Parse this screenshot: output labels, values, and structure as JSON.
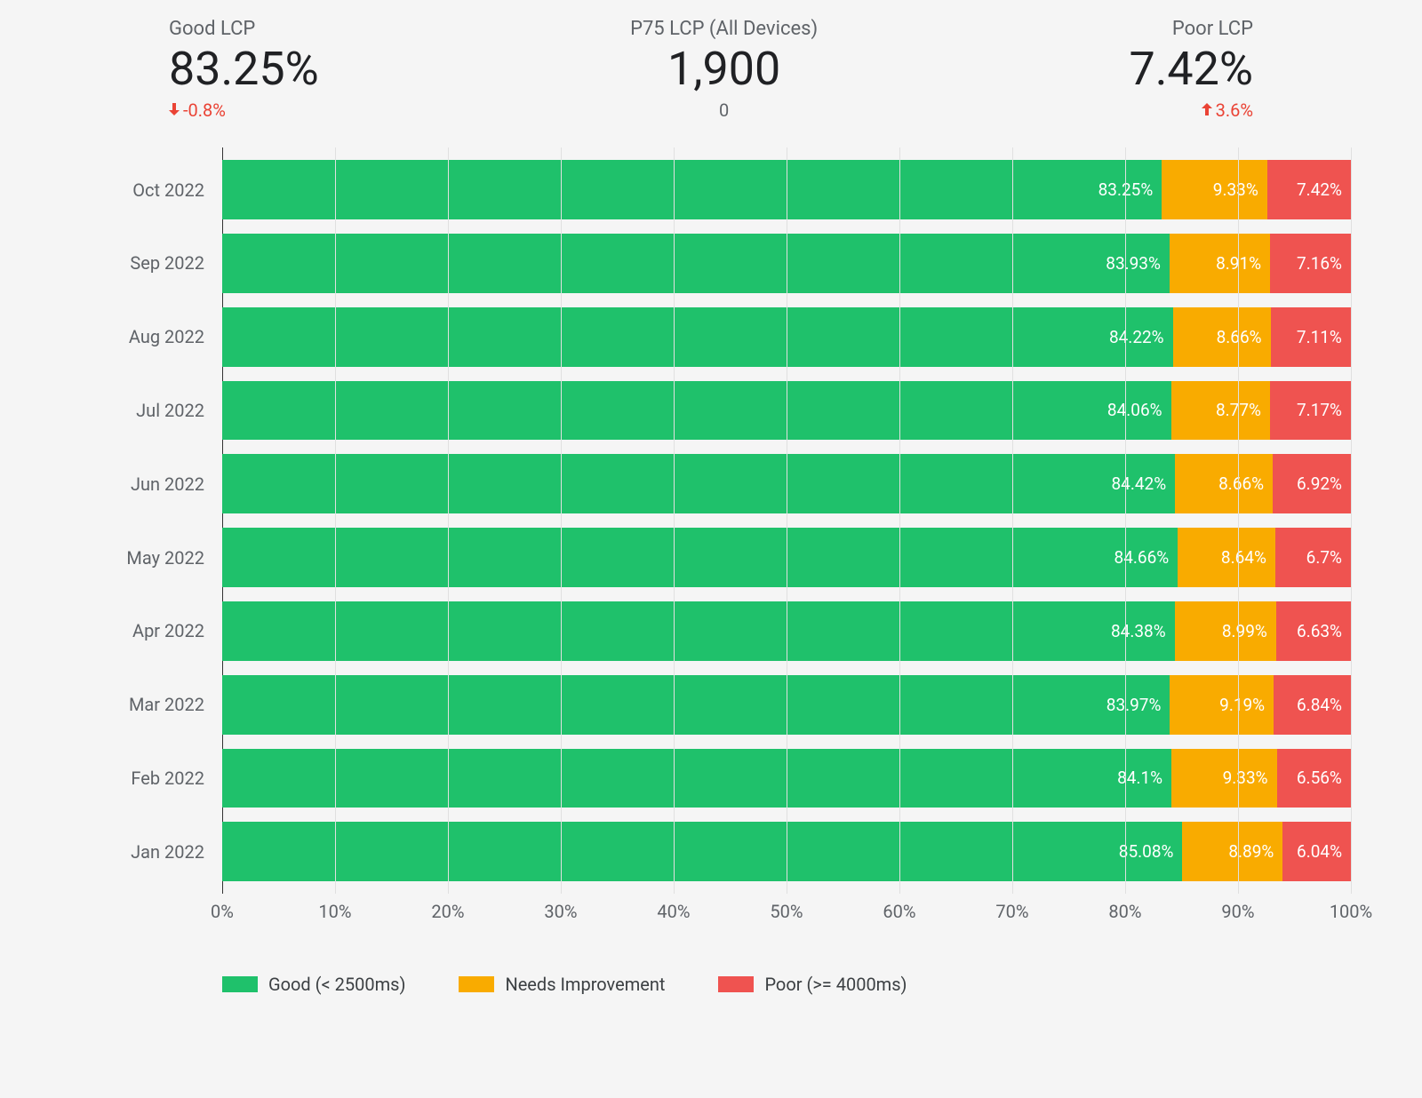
{
  "colors": {
    "good": "#1fc16b",
    "needs": "#f9ab00",
    "poor": "#ef5350",
    "grid": "#e0e0e0",
    "bg": "#f5f5f5",
    "text_muted": "#5f6368",
    "text_main": "#202124",
    "delta_red": "#ea4335"
  },
  "scorecards": {
    "good": {
      "label": "Good LCP",
      "value": "83.25%",
      "delta_arrow": "down",
      "delta_text": "-0.8%"
    },
    "p75": {
      "label": "P75 LCP (All Devices)",
      "value": "1,900",
      "sub": "0"
    },
    "poor": {
      "label": "Poor LCP",
      "value": "7.42%",
      "delta_arrow": "up",
      "delta_text": "3.6%"
    }
  },
  "chart": {
    "type": "stacked-horizontal-bar",
    "x_ticks": [
      "0%",
      "10%",
      "20%",
      "30%",
      "40%",
      "50%",
      "60%",
      "70%",
      "80%",
      "90%",
      "100%"
    ],
    "xlim": [
      0,
      100
    ],
    "series_keys": [
      "good",
      "needs",
      "poor"
    ],
    "rows": [
      {
        "label": "Oct 2022",
        "good": 83.25,
        "needs": 9.33,
        "poor": 7.42
      },
      {
        "label": "Sep 2022",
        "good": 83.93,
        "needs": 8.91,
        "poor": 7.16
      },
      {
        "label": "Aug 2022",
        "good": 84.22,
        "needs": 8.66,
        "poor": 7.11
      },
      {
        "label": "Jul 2022",
        "good": 84.06,
        "needs": 8.77,
        "poor": 7.17
      },
      {
        "label": "Jun 2022",
        "good": 84.42,
        "needs": 8.66,
        "poor": 6.92
      },
      {
        "label": "May 2022",
        "good": 84.66,
        "needs": 8.64,
        "poor": 6.7
      },
      {
        "label": "Apr 2022",
        "good": 84.38,
        "needs": 8.99,
        "poor": 6.63
      },
      {
        "label": "Mar 2022",
        "good": 83.97,
        "needs": 9.19,
        "poor": 6.84
      },
      {
        "label": "Feb 2022",
        "good": 84.1,
        "needs": 9.33,
        "poor": 6.56
      },
      {
        "label": "Jan 2022",
        "good": 85.08,
        "needs": 8.89,
        "poor": 6.04
      }
    ]
  },
  "legend": {
    "good": "Good (< 2500ms)",
    "needs": "Needs Improvement",
    "poor": "Poor (>= 4000ms)"
  }
}
